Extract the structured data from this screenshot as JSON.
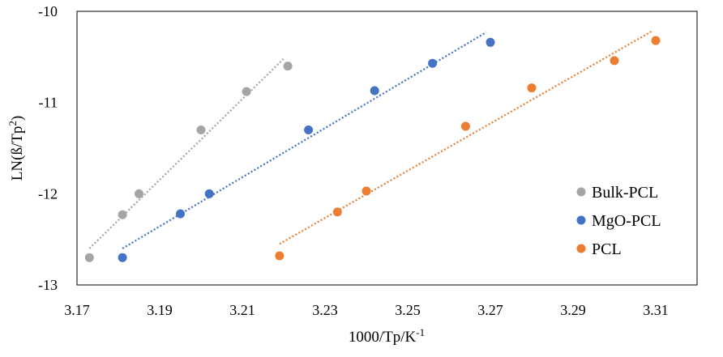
{
  "chart_data": {
    "type": "scatter",
    "xlabel": "1000/Tp/K",
    "xlabel_superscript": "-1",
    "ylabel": "LN(ß/Tp",
    "ylabel_superscript": "2",
    "ylabel_suffix": ")",
    "xlim": [
      3.17,
      3.32
    ],
    "ylim": [
      -13,
      -10
    ],
    "x_ticks": [
      "3.17",
      "3.19",
      "3.21",
      "3.23",
      "3.25",
      "3.27",
      "3.29",
      "3.31"
    ],
    "y_ticks": [
      "-10",
      "-11",
      "-12",
      "-13"
    ],
    "grid": false,
    "legend_position": "bottom-right",
    "trendlines": "linear, dotted",
    "series": [
      {
        "name": "Bulk-PCL",
        "color": "#a5a5a5",
        "points": [
          [
            3.173,
            -12.7
          ],
          [
            3.181,
            -12.23
          ],
          [
            3.185,
            -12.0
          ],
          [
            3.2,
            -11.3
          ],
          [
            3.211,
            -10.88
          ],
          [
            3.221,
            -10.6
          ]
        ],
        "trend": [
          [
            3.173,
            -12.6
          ],
          [
            3.22,
            -10.52
          ]
        ]
      },
      {
        "name": "MgO-PCL",
        "color": "#4472c4",
        "points": [
          [
            3.181,
            -12.7
          ],
          [
            3.195,
            -12.22
          ],
          [
            3.202,
            -12.0
          ],
          [
            3.226,
            -11.3
          ],
          [
            3.242,
            -10.87
          ],
          [
            3.256,
            -10.57
          ],
          [
            3.27,
            -10.34
          ]
        ],
        "trend": [
          [
            3.181,
            -12.6
          ],
          [
            3.269,
            -10.23
          ]
        ]
      },
      {
        "name": "PCL",
        "color": "#ed7d31",
        "points": [
          [
            3.219,
            -12.68
          ],
          [
            3.233,
            -12.2
          ],
          [
            3.24,
            -11.97
          ],
          [
            3.264,
            -11.26
          ],
          [
            3.28,
            -10.84
          ],
          [
            3.3,
            -10.54
          ],
          [
            3.31,
            -10.32
          ]
        ],
        "trend": [
          [
            3.219,
            -12.55
          ],
          [
            3.309,
            -10.22
          ]
        ]
      }
    ]
  }
}
